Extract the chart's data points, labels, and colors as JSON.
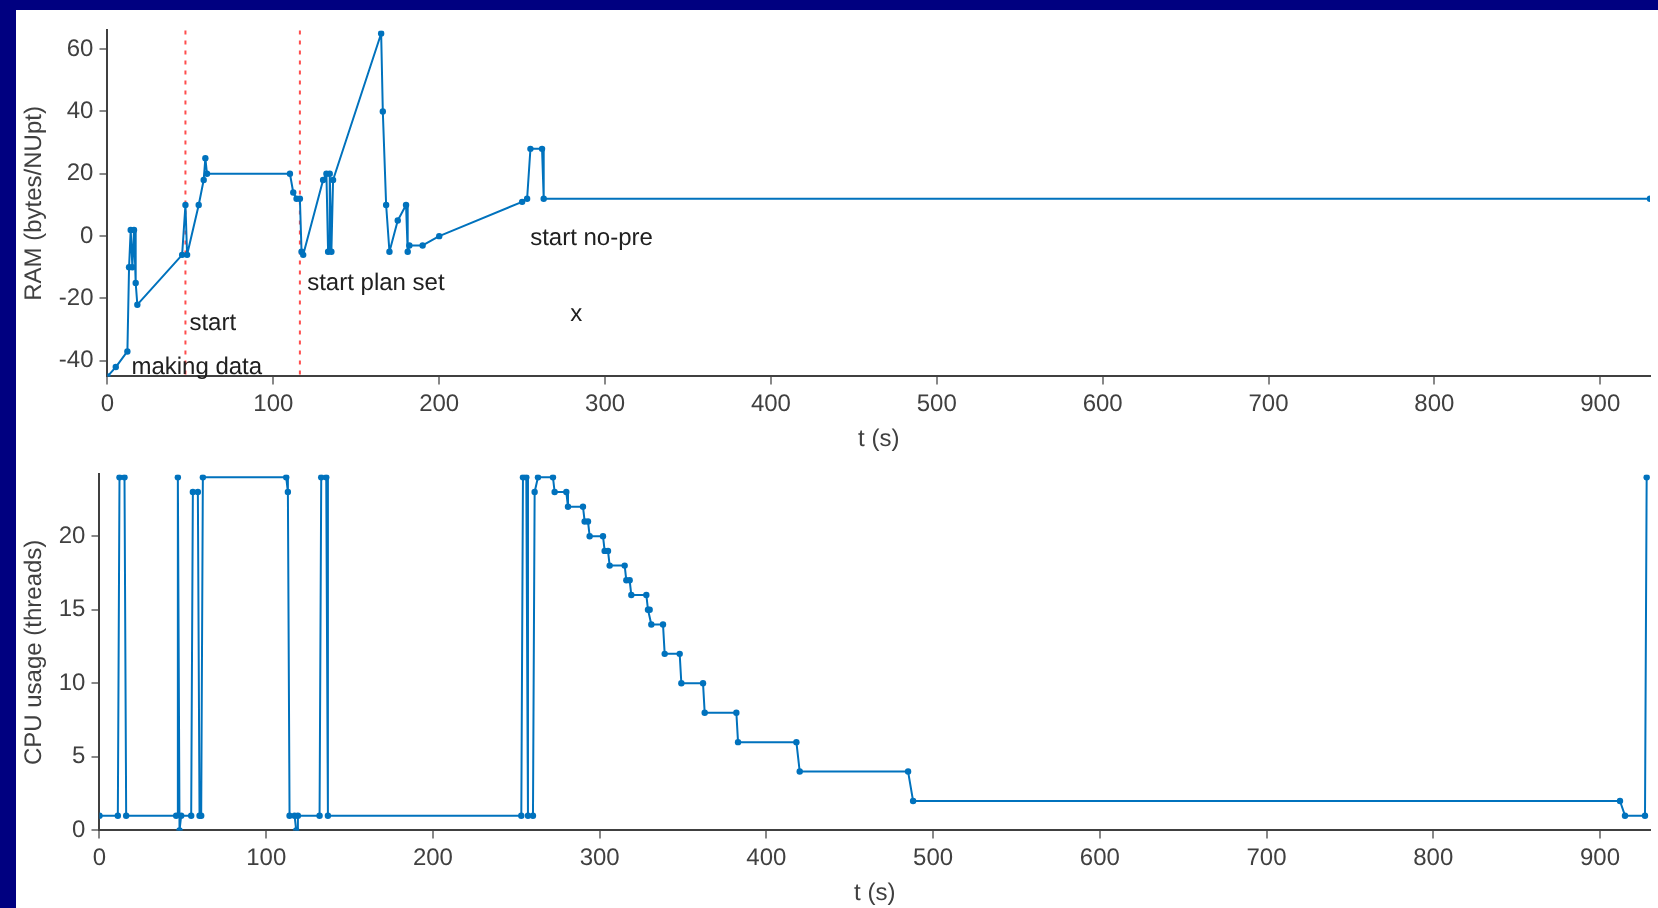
{
  "chart_data": [
    {
      "type": "line",
      "xlabel": "t (s)",
      "ylabel": "RAM (bytes/NUpt)",
      "xlim": [
        0,
        930
      ],
      "ylim": [
        -45,
        66
      ],
      "xticks": [
        0,
        100,
        200,
        300,
        400,
        500,
        600,
        700,
        800,
        900
      ],
      "yticks": [
        -40,
        -20,
        0,
        20,
        40,
        60
      ],
      "grid": false,
      "marker": "circle",
      "line_style": "solid",
      "series": [
        {
          "color": "#0072bd",
          "x": [
            0,
            5,
            12,
            13,
            14,
            15,
            16,
            17,
            18,
            45,
            47,
            48,
            55,
            58,
            59,
            60,
            110,
            112,
            114,
            116,
            117,
            118,
            130,
            132,
            133,
            134,
            135,
            136,
            165,
            166,
            168,
            170,
            175,
            180,
            181,
            182,
            190,
            200,
            250,
            253,
            255,
            262,
            263,
            930
          ],
          "values": [
            -45,
            -42,
            -37,
            -10,
            2,
            -10,
            2,
            -15,
            -22,
            -6,
            10,
            -6,
            10,
            18,
            25,
            20,
            20,
            14,
            12,
            12,
            -5,
            -6,
            18,
            20,
            -5,
            20,
            -5,
            18,
            65,
            40,
            10,
            -5,
            5,
            10,
            -5,
            -3,
            -3,
            0,
            11,
            12,
            28,
            28,
            12,
            12
          ]
        }
      ],
      "ref_lines": [
        {
          "axis": "x",
          "value": 47,
          "color": "#ff4d4d",
          "line_style": "dotted"
        },
        {
          "axis": "x",
          "value": 116,
          "color": "#ff4d4d",
          "line_style": "dotted"
        }
      ],
      "annotations": [
        {
          "text": "making data",
          "x": 12,
          "y": -42
        },
        {
          "text": "start",
          "x": 47,
          "y": -28
        },
        {
          "text": "start plan set",
          "x": 118,
          "y": -15
        },
        "start no-pre",
        "x"
      ]
    },
    {
      "type": "line",
      "xlabel": "t (s)",
      "ylabel": "CPU usage (threads)",
      "xlim": [
        0,
        930
      ],
      "ylim": [
        0,
        24.2
      ],
      "xticks": [
        0,
        100,
        200,
        300,
        400,
        500,
        600,
        700,
        800,
        900
      ],
      "yticks": [
        0,
        5,
        10,
        15,
        20
      ],
      "grid": false,
      "marker": "circle",
      "line_style": "solid",
      "series": [
        {
          "color": "#0072bd",
          "x": [
            0,
            11,
            12,
            15,
            16,
            46,
            47,
            48,
            49,
            55,
            56,
            59,
            60,
            61,
            62,
            112,
            113,
            114,
            117,
            118,
            119,
            132,
            133,
            136,
            137,
            253,
            254,
            256,
            257,
            260,
            261,
            263,
            272,
            273,
            280,
            281,
            290,
            291,
            293,
            294,
            302,
            303,
            305,
            306,
            315,
            316,
            318,
            319,
            328,
            329,
            330,
            331,
            338,
            339,
            348,
            349,
            362,
            363,
            382,
            383,
            418,
            420,
            485,
            488,
            912,
            915,
            927,
            928
          ],
          "values": [
            1,
            1,
            24,
            24,
            1,
            1,
            24,
            0,
            1,
            1,
            23,
            23,
            1,
            1,
            24,
            24,
            23,
            1,
            1,
            0,
            1,
            1,
            24,
            24,
            1,
            1,
            24,
            24,
            1,
            1,
            23,
            24,
            24,
            23,
            23,
            22,
            22,
            21,
            21,
            20,
            20,
            19,
            19,
            18,
            18,
            17,
            17,
            16,
            16,
            15,
            15,
            14,
            14,
            12,
            12,
            10,
            10,
            8,
            8,
            6,
            6,
            4,
            4,
            2,
            2,
            1,
            1,
            24
          ]
        }
      ]
    }
  ]
}
